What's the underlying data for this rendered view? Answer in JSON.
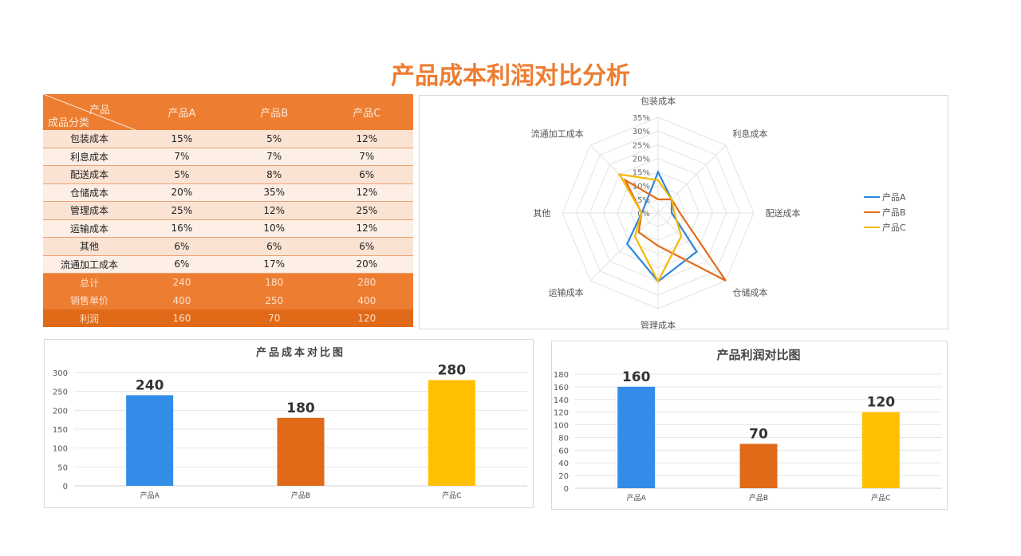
{
  "title": "产品成本利润对比分析",
  "table": {
    "corner_top": "产品",
    "corner_bottom": "成品分类",
    "columns": [
      "产品A",
      "产品B",
      "产品C"
    ],
    "rows": [
      {
        "label": "包装成本",
        "values": [
          "15%",
          "5%",
          "12%"
        ]
      },
      {
        "label": "利息成本",
        "values": [
          "7%",
          "7%",
          "7%"
        ]
      },
      {
        "label": "配送成本",
        "values": [
          "5%",
          "8%",
          "6%"
        ]
      },
      {
        "label": "仓储成本",
        "values": [
          "20%",
          "35%",
          "12%"
        ]
      },
      {
        "label": "管理成本",
        "values": [
          "25%",
          "12%",
          "25%"
        ]
      },
      {
        "label": "运输成本",
        "values": [
          "16%",
          "10%",
          "12%"
        ]
      },
      {
        "label": "其他",
        "values": [
          "6%",
          "6%",
          "6%"
        ]
      },
      {
        "label": "流通加工成本",
        "values": [
          "6%",
          "17%",
          "20%"
        ]
      }
    ],
    "summary": [
      {
        "label": "总计",
        "values": [
          "240",
          "180",
          "280"
        ]
      },
      {
        "label": "销售单价",
        "values": [
          "400",
          "250",
          "400"
        ]
      },
      {
        "label": "利润",
        "values": [
          "160",
          "70",
          "120"
        ]
      }
    ]
  },
  "chart_data": [
    {
      "type": "radar",
      "title": "",
      "categories": [
        "包装成本",
        "利息成本",
        "配送成本",
        "仓储成本",
        "管理成本",
        "运输成本",
        "其他",
        "流通加工成本"
      ],
      "ticks": [
        "0%",
        "5%",
        "10%",
        "15%",
        "20%",
        "25%",
        "30%",
        "35%"
      ],
      "range": [
        0,
        35
      ],
      "legend": "right",
      "series": [
        {
          "name": "产品A",
          "color": "#2E86DE",
          "values": [
            15,
            7,
            5,
            20,
            25,
            16,
            6,
            6
          ]
        },
        {
          "name": "产品B",
          "color": "#E46C1E",
          "values": [
            5,
            7,
            8,
            35,
            12,
            10,
            6,
            17
          ]
        },
        {
          "name": "产品C",
          "color": "#F5B800",
          "values": [
            12,
            7,
            6,
            12,
            25,
            12,
            6,
            20
          ]
        }
      ]
    },
    {
      "type": "bar",
      "title": "产品成本对比图",
      "categories": [
        "产品A",
        "产品B",
        "产品C"
      ],
      "values": [
        240,
        180,
        280
      ],
      "colors": [
        "#338DE8",
        "#E06A18",
        "#FFC000"
      ],
      "ylim": [
        0,
        300
      ],
      "ticks": [
        "0",
        "50",
        "100",
        "150",
        "200",
        "250",
        "300"
      ],
      "grid": true
    },
    {
      "type": "bar",
      "title": "产品利润对比图",
      "categories": [
        "产品A",
        "产品B",
        "产品C"
      ],
      "values": [
        160,
        70,
        120
      ],
      "colors": [
        "#338DE8",
        "#E06A18",
        "#FFC000"
      ],
      "ylim": [
        0,
        180
      ],
      "ticks": [
        "0",
        "20",
        "40",
        "60",
        "80",
        "100",
        "120",
        "140",
        "160",
        "180"
      ],
      "grid": true
    }
  ]
}
